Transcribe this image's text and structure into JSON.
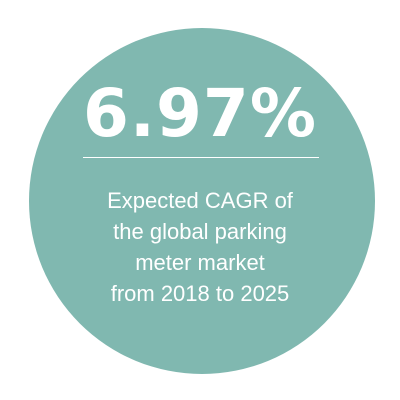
{
  "stat": {
    "value": "6.97%"
  },
  "caption": {
    "lines": [
      "Expected CAGR of",
      "the global parking",
      "meter market",
      "from 2018 to 2025"
    ]
  },
  "colors": {
    "circle": "#80b8b0",
    "text": "#ffffff",
    "background": "#ffffff"
  }
}
